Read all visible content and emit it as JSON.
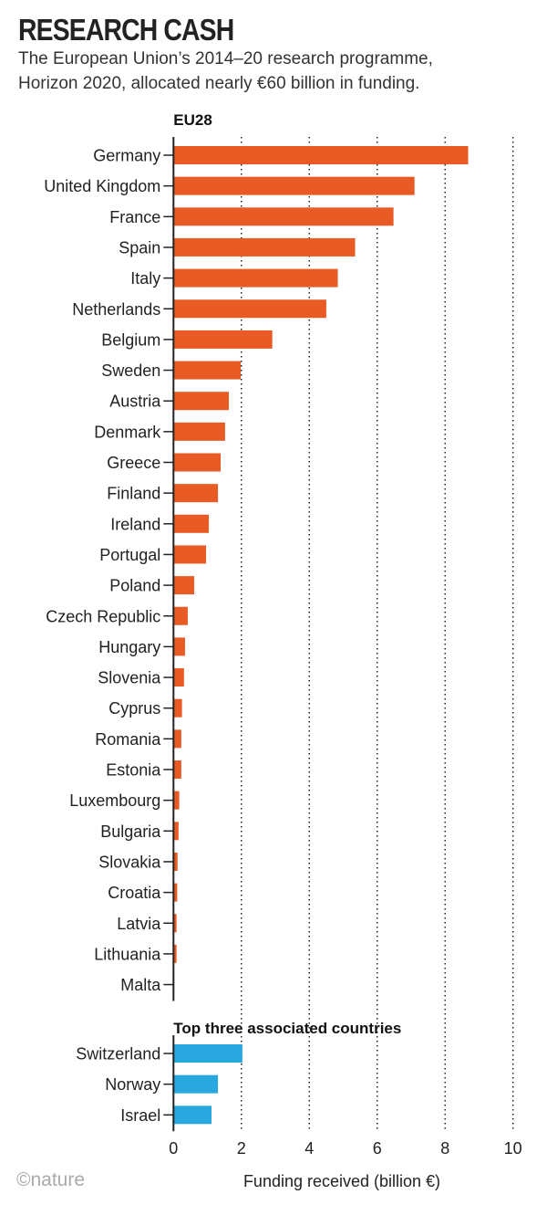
{
  "chart_data": {
    "type": "bar",
    "orientation": "horizontal",
    "title": "RESEARCH CASH",
    "subtitle": [
      "The European Union’s 2014–20 research programme,",
      "Horizon 2020, allocated nearly €60 billion in funding."
    ],
    "xlabel": "Funding received (billion €)",
    "xlim": [
      0,
      10
    ],
    "xticks": [
      "0",
      "2",
      "4",
      "6",
      "8",
      "10"
    ],
    "grid": "vertical dotted",
    "groups": [
      {
        "name": "EU28",
        "color": "#e95b24",
        "categories": [
          "Germany",
          "United Kingdom",
          "France",
          "Spain",
          "Italy",
          "Netherlands",
          "Belgium",
          "Sweden",
          "Austria",
          "Denmark",
          "Greece",
          "Finland",
          "Ireland",
          "Portugal",
          "Poland",
          "Czech Republic",
          "Hungary",
          "Slovenia",
          "Cyprus",
          "Romania",
          "Estonia",
          "Luxembourg",
          "Bulgaria",
          "Slovakia",
          "Croatia",
          "Latvia",
          "Lithuania",
          "Malta"
        ],
        "values": [
          8.68,
          7.1,
          6.48,
          5.35,
          4.84,
          4.5,
          2.91,
          1.98,
          1.63,
          1.52,
          1.39,
          1.31,
          1.04,
          0.96,
          0.61,
          0.42,
          0.34,
          0.31,
          0.25,
          0.23,
          0.23,
          0.17,
          0.15,
          0.12,
          0.11,
          0.09,
          0.09,
          0.02
        ]
      },
      {
        "name": "Top three associated countries",
        "color": "#29a8e0",
        "categories": [
          "Switzerland",
          "Norway",
          "Israel"
        ],
        "values": [
          2.03,
          1.31,
          1.12
        ]
      }
    ],
    "credit": "©nature"
  }
}
